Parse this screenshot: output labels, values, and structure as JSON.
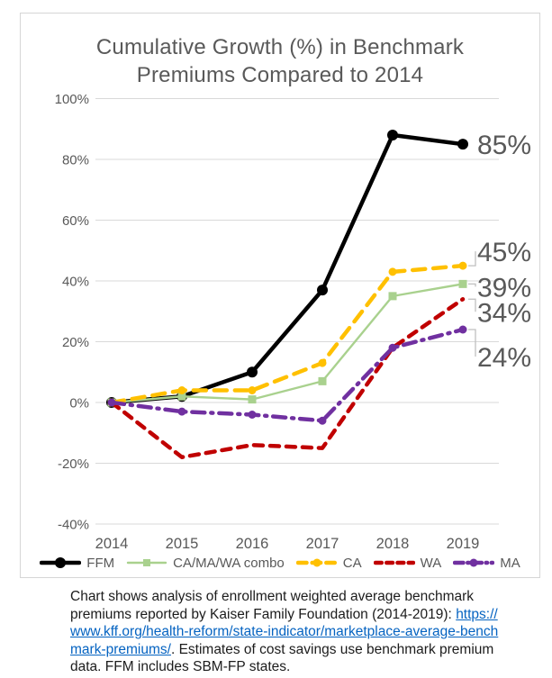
{
  "title": {
    "line1": "Cumulative Growth (%) in Benchmark",
    "line2": "Premiums Compared to 2014"
  },
  "chart_data": {
    "type": "line",
    "title": "Cumulative Growth (%) in Benchmark Premiums Compared to 2014",
    "categories": [
      "2014",
      "2015",
      "2016",
      "2017",
      "2018",
      "2019"
    ],
    "ylim": [
      -40,
      100
    ],
    "yticks": [
      100,
      80,
      60,
      40,
      20,
      0,
      -20,
      -40
    ],
    "ytick_labels": [
      "100%",
      "80%",
      "60%",
      "40%",
      "20%",
      "0%",
      "-20%",
      "-40%"
    ],
    "grid": true,
    "legend_position": "bottom",
    "axis_color": "#595959",
    "gridline_color": "#d9d9d9",
    "label_color": "#595959",
    "leader_color": "#bfbfbf",
    "series": [
      {
        "name": "FFM",
        "color": "#000000",
        "style": "solid",
        "width": 4.5,
        "marker": "circle",
        "marker_size": 6,
        "values": [
          0,
          2,
          10,
          37,
          88,
          85
        ],
        "end_label": "85%",
        "label_dy": 0
      },
      {
        "name": "CA/MA/WA combo",
        "color": "#a9d18e",
        "style": "solid",
        "width": 2.4,
        "marker": "square",
        "marker_size": 4.5,
        "values": [
          0,
          2,
          1,
          7,
          35,
          39
        ],
        "end_label": "39%",
        "label_dy": 3
      },
      {
        "name": "CA",
        "color": "#ffc000",
        "style": "dashed_long",
        "width": 4.5,
        "marker": "circle",
        "marker_size": 4.5,
        "values": [
          0,
          4,
          4,
          13,
          43,
          45
        ],
        "end_label": "45%",
        "label_dy": -16
      },
      {
        "name": "WA",
        "color": "#c00000",
        "style": "dashed",
        "width": 4.5,
        "marker": "none",
        "marker_size": 0,
        "values": [
          0,
          -18,
          -14,
          -15,
          18,
          34
        ],
        "end_label": "34%",
        "label_dy": 14
      },
      {
        "name": "MA",
        "color": "#7030a0",
        "style": "dashdot",
        "width": 4.5,
        "marker": "circle",
        "marker_size": 4.5,
        "values": [
          0,
          -3,
          -4,
          -6,
          18,
          24
        ],
        "end_label": "24%",
        "label_dy": 30
      }
    ]
  },
  "caption": {
    "text_before_link": "Chart shows analysis of enrollment weighted average benchmark premiums reported by Kaiser Family Foundation (2014-2019): ",
    "link_text": "https://www.kff.org/health-reform/state-indicator/marketplace-average-benchmark-premiums/",
    "text_after_link": ". Estimates of cost savings use benchmark premium data. FFM includes SBM-FP states."
  }
}
